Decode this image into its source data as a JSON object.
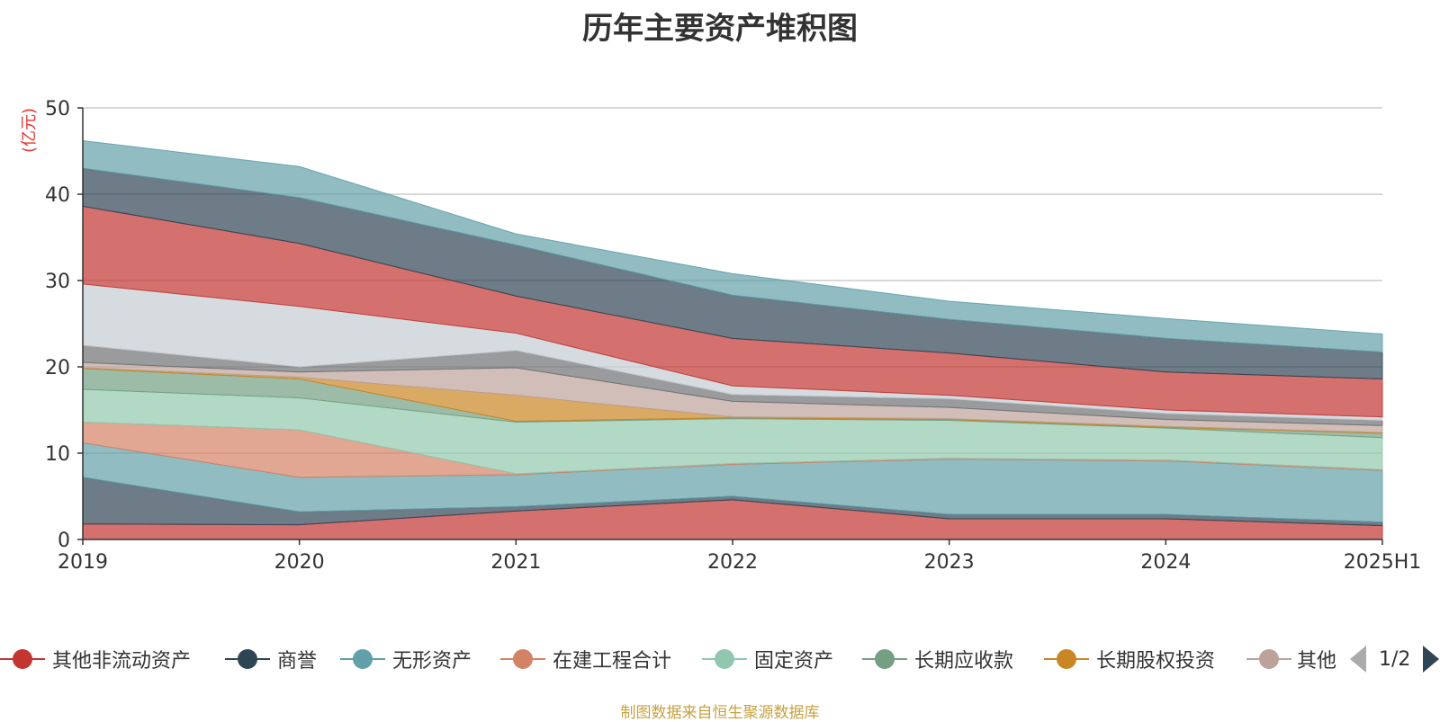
{
  "chart_data": {
    "type": "area",
    "stacked": true,
    "title": "历年主要资产堆积图",
    "ylabel": "(亿元)",
    "ylim": [
      0,
      50
    ],
    "yticks": [
      0,
      10,
      20,
      30,
      40,
      50
    ],
    "categories": [
      "2019",
      "2020",
      "2021",
      "2022",
      "2023",
      "2024",
      "2025H1"
    ],
    "grid": true,
    "legend_position": "bottom",
    "series": [
      {
        "name": "其他非流动资产",
        "color": "#c23531",
        "values": [
          1.8,
          1.7,
          3.3,
          4.6,
          2.4,
          2.4,
          1.6
        ]
      },
      {
        "name": "商誉",
        "color": "#2f4554",
        "values": [
          5.4,
          1.5,
          0.5,
          0.4,
          0.5,
          0.5,
          0.4
        ]
      },
      {
        "name": "无形资产",
        "color": "#61a0a8",
        "values": [
          4.0,
          4.0,
          3.7,
          3.7,
          6.4,
          6.2,
          6.0
        ]
      },
      {
        "name": "在建工程合计",
        "color": "#d48265",
        "values": [
          2.4,
          5.5,
          0.1,
          0.1,
          0.1,
          0.1,
          0.1
        ]
      },
      {
        "name": "固定资产",
        "color": "#91c7ae",
        "values": [
          3.8,
          3.7,
          6.0,
          5.2,
          4.4,
          3.7,
          3.7
        ]
      },
      {
        "name": "长期应收款",
        "color": "#749f83",
        "values": [
          2.4,
          2.2,
          0.1,
          0.1,
          0.1,
          0.1,
          0.5
        ]
      },
      {
        "name": "长期股权投资",
        "color": "#ca8622",
        "values": [
          0.1,
          0.2,
          3.0,
          0.1,
          0.1,
          0.1,
          0.1
        ]
      },
      {
        "name": "其他",
        "color": "#bda29a",
        "values": [
          0.6,
          0.6,
          3.2,
          1.8,
          1.3,
          0.8,
          0.8
        ]
      },
      {
        "name": "",
        "color": "#6e7074",
        "values": [
          2.0,
          0.6,
          2.0,
          0.8,
          1.0,
          0.7,
          0.6
        ]
      },
      {
        "name": "",
        "color": "#c4ccd3",
        "values": [
          7.1,
          7.0,
          2.0,
          1.0,
          0.4,
          0.4,
          0.4
        ]
      },
      {
        "name": "",
        "color": "#c23531",
        "values": [
          9.0,
          7.3,
          4.3,
          5.5,
          4.9,
          4.4,
          4.4
        ]
      },
      {
        "name": "",
        "color": "#2f4554",
        "values": [
          4.4,
          5.3,
          5.9,
          5.0,
          3.9,
          3.9,
          3.1
        ]
      },
      {
        "name": "",
        "color": "#61a0a8",
        "values": [
          3.2,
          3.6,
          1.3,
          2.5,
          2.1,
          2.3,
          2.1
        ]
      }
    ]
  },
  "legend": {
    "items": [
      {
        "label": "其他非流动资产",
        "color": "#c23531"
      },
      {
        "label": "商誉",
        "color": "#2f4554"
      },
      {
        "label": "无形资产",
        "color": "#61a0a8"
      },
      {
        "label": "在建工程合计",
        "color": "#d48265"
      },
      {
        "label": "固定资产",
        "color": "#91c7ae"
      },
      {
        "label": "长期应收款",
        "color": "#749f83"
      },
      {
        "label": "长期股权投资",
        "color": "#ca8622"
      },
      {
        "label": "其他",
        "color": "#bda29a"
      }
    ],
    "page": "1/2"
  },
  "source_note": "制图数据来自恒生聚源数据库"
}
